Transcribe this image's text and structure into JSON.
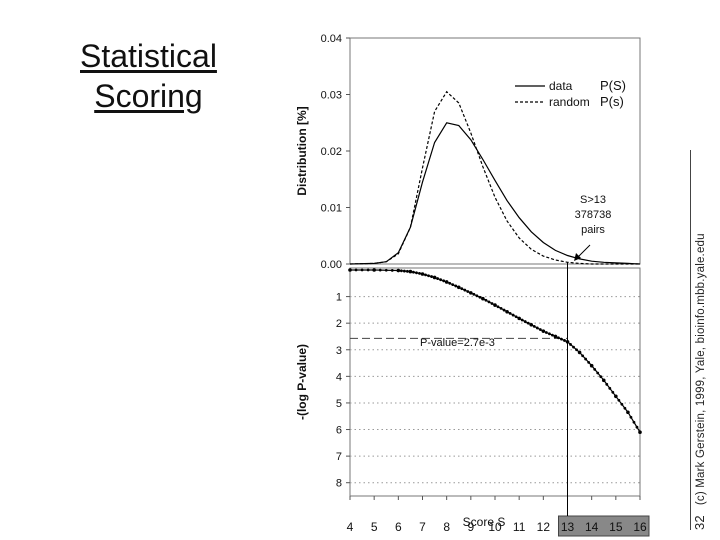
{
  "slide": {
    "title_line1": "Statistical",
    "title_line2": "Scoring",
    "credit": "(c) Mark Gerstein, 1999, Yale, bioinfo.mbb.yale.edu",
    "page_number": "32"
  },
  "chart_data": [
    {
      "type": "line",
      "ylabel": "Distribution [%]",
      "ylim": [
        0,
        0.04
      ],
      "yticks": [
        "0.00",
        "0.01",
        "0.02",
        "0.03",
        "0.04"
      ],
      "xlim": [
        4,
        16
      ],
      "grid": false,
      "legend_position": "top-right",
      "series": [
        {
          "name": "data",
          "symbol": "P(S)",
          "style": "solid",
          "x": [
            4,
            5,
            5.5,
            6,
            6.5,
            7,
            7.5,
            8,
            8.5,
            9,
            9.5,
            10,
            10.5,
            11,
            11.5,
            12,
            12.5,
            13,
            13.5,
            14,
            14.5,
            15,
            15.5,
            16
          ],
          "y": [
            0.0,
            0.0001,
            0.0004,
            0.002,
            0.0065,
            0.0145,
            0.0215,
            0.025,
            0.0245,
            0.022,
            0.0185,
            0.0148,
            0.0112,
            0.0082,
            0.0057,
            0.0038,
            0.0024,
            0.0015,
            0.0009,
            0.0005,
            0.0003,
            0.0002,
            0.0001,
            0.0
          ]
        },
        {
          "name": "random",
          "symbol": "P(s)",
          "style": "dashed",
          "x": [
            4,
            5,
            5.5,
            6,
            6.5,
            7,
            7.5,
            8,
            8.5,
            9,
            9.5,
            10,
            10.5,
            11,
            11.5,
            12,
            12.5,
            13,
            13.5,
            14,
            14.5,
            15,
            15.5,
            16
          ],
          "y": [
            0.0,
            0.0001,
            0.0004,
            0.0018,
            0.0065,
            0.017,
            0.027,
            0.0305,
            0.0285,
            0.0232,
            0.0172,
            0.0118,
            0.0076,
            0.0046,
            0.0026,
            0.0014,
            0.0007,
            0.0003,
            0.0001,
            0.0,
            0.0,
            0.0,
            0.0,
            0.0
          ]
        }
      ],
      "annotations": [
        {
          "text_lines": [
            "S>13",
            "378738",
            "pairs"
          ],
          "x": 13.5,
          "y": 0.009
        }
      ]
    },
    {
      "type": "line",
      "ylabel": "-(log P-value)",
      "ylim": [
        0,
        8.5
      ],
      "inverted_y": true,
      "yticks": [
        "1",
        "2",
        "3",
        "4",
        "5",
        "6",
        "7",
        "8"
      ],
      "xlabel": "Score S",
      "xticks": [
        "4",
        "5",
        "6",
        "7",
        "8",
        "9",
        "10",
        "11",
        "12",
        "13",
        "14",
        "15",
        "16"
      ],
      "xlim": [
        4,
        16
      ],
      "grid": true,
      "highlighted_range": [
        13,
        16
      ],
      "cutoff_score": 13,
      "series": [
        {
          "name": "",
          "style": "dotted-markers",
          "x": [
            4,
            5,
            6,
            6.5,
            7,
            7.5,
            8,
            8.5,
            9,
            9.5,
            10,
            10.5,
            11,
            11.5,
            12,
            12.5,
            13,
            13.5,
            14,
            14.5,
            15,
            15.5,
            16
          ],
          "y": [
            0.0,
            0.0,
            0.02,
            0.06,
            0.15,
            0.28,
            0.45,
            0.65,
            0.86,
            1.08,
            1.32,
            1.57,
            1.82,
            2.06,
            2.3,
            2.5,
            2.7,
            3.1,
            3.6,
            4.15,
            4.75,
            5.35,
            6.1
          ]
        }
      ],
      "annotations": [
        {
          "text": "P-value=2.7e-3",
          "x": 10,
          "y": 2.57
        }
      ]
    }
  ]
}
